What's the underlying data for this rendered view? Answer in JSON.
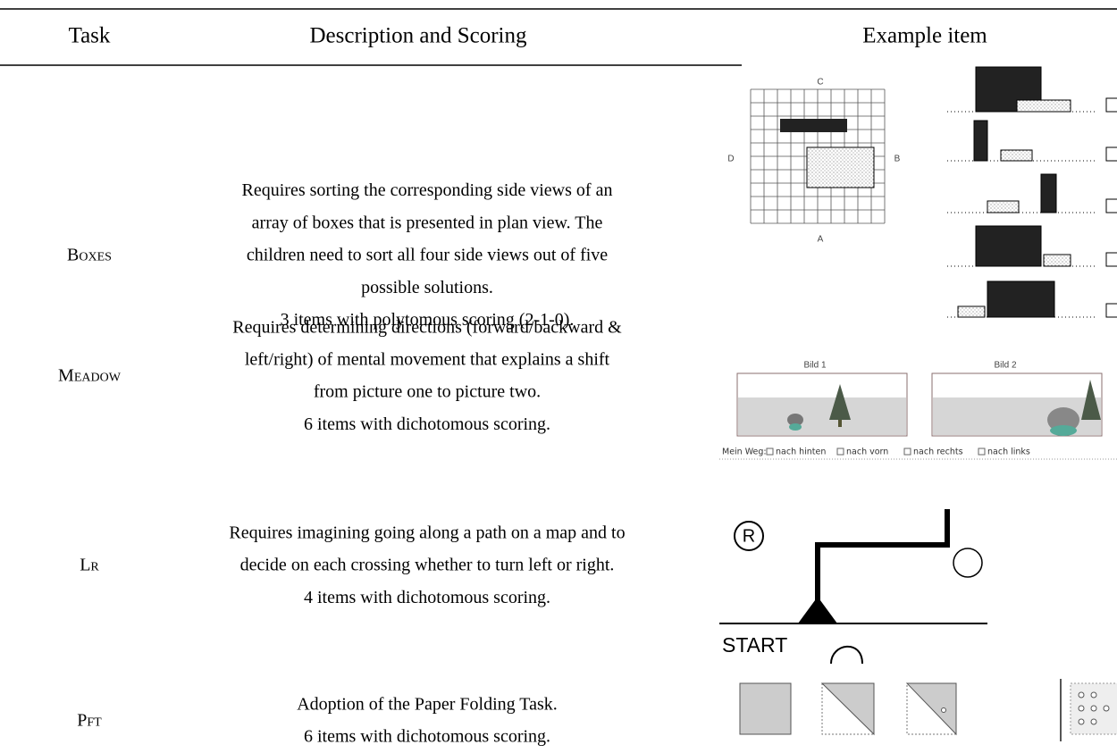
{
  "header": {
    "task": "Task",
    "description": "Description and Scoring",
    "example": "Example item"
  },
  "rows": [
    {
      "task": "Boxes",
      "description": [
        "Requires sorting the corresponding side views of an",
        "array of boxes that is presented in plan view. The",
        "children need to sort all four side views out of five",
        "possible solutions.",
        "3 items with polytomous scoring (2-1-0)."
      ],
      "example": {
        "labels": [
          "C",
          "D",
          "B",
          "A"
        ]
      }
    },
    {
      "task": "Meadow",
      "description": [
        "Requires determining directions (forward/backward &",
        "left/right) of mental movement that explains a shift",
        "from picture one to picture two.",
        "6 items with dichotomous scoring."
      ],
      "example": {
        "pictures": [
          "Bild 1",
          "Bild 2"
        ],
        "caption": "Mein Weg:",
        "options": [
          "nach hinten",
          "nach vorn",
          "nach rechts",
          "nach links"
        ]
      }
    },
    {
      "task": "Lr",
      "description": [
        "Requires imagining going along a path on a map and to",
        "decide on each crossing whether to turn left or right.",
        "4 items with dichotomous scoring."
      ],
      "example": {
        "marker": "R",
        "start": "START"
      }
    },
    {
      "task": "Pft",
      "description": [
        "Adoption of the Paper Folding Task.",
        "6 items with dichotomous scoring."
      ]
    }
  ]
}
